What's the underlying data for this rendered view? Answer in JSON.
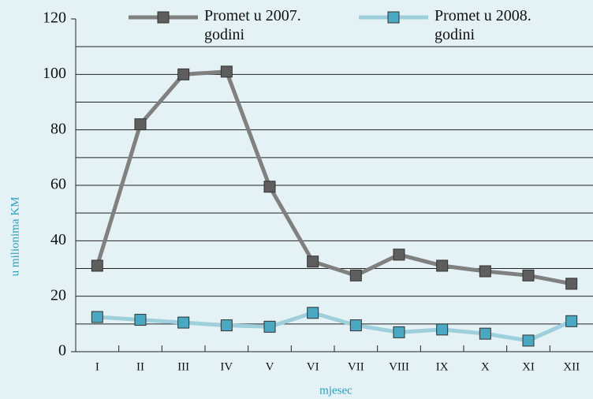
{
  "chart_data": {
    "type": "line",
    "categories": [
      "I",
      "II",
      "III",
      "IV",
      "V",
      "VI",
      "VII",
      "VIII",
      "IX",
      "X",
      "XI",
      "XII"
    ],
    "series": [
      {
        "name": "Promet u 2007. godini",
        "color": "#808080",
        "marker_color": "#5e5e5e",
        "values": [
          31,
          82,
          100,
          101,
          59.5,
          32.5,
          27.5,
          35,
          31,
          29,
          27.5,
          24.5
        ]
      },
      {
        "name": "Promet u 2008. godini",
        "color": "#9ecfdc",
        "marker_color": "#4aa8c2",
        "values": [
          12.5,
          11.5,
          10.5,
          9.5,
          9,
          14,
          9.5,
          7,
          8,
          6.5,
          4,
          11
        ]
      }
    ],
    "ylim": [
      0,
      120
    ],
    "yticks": [
      0,
      20,
      40,
      60,
      80,
      100,
      120
    ],
    "minor_yticks": [
      10,
      30,
      50,
      70,
      90,
      110
    ],
    "grid": true,
    "ylabel": "u milionima KM",
    "xlabel": "mjesec"
  }
}
